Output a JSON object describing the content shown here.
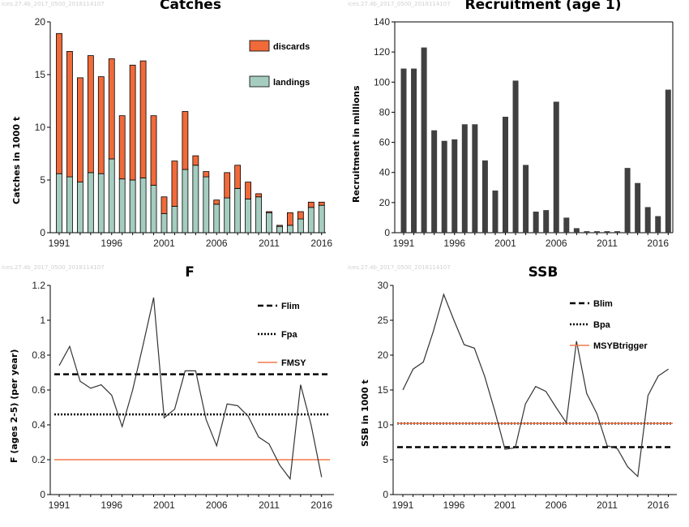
{
  "watermark": "ices.27.4b_2017_0500_2018114107",
  "chart_data": [
    {
      "id": "catches",
      "type": "bar",
      "stacked": true,
      "title": "Catches",
      "xlabel": "",
      "ylabel": "Catches in 1000 t",
      "ylim": [
        0,
        20
      ],
      "yticks": [
        0,
        5,
        10,
        15,
        20
      ],
      "xticks": [
        1991,
        1996,
        2001,
        2006,
        2011,
        2016
      ],
      "x": [
        1991,
        1992,
        1993,
        1994,
        1995,
        1996,
        1997,
        1998,
        1999,
        2000,
        2001,
        2002,
        2003,
        2004,
        2005,
        2006,
        2007,
        2008,
        2009,
        2010,
        2011,
        2012,
        2013,
        2014,
        2015,
        2016
      ],
      "series": [
        {
          "name": "landings",
          "color": "#a5cdbf",
          "values": [
            5.6,
            5.3,
            4.8,
            5.7,
            5.6,
            7.0,
            5.1,
            5.0,
            5.2,
            4.5,
            1.8,
            2.5,
            6.0,
            6.4,
            5.3,
            2.7,
            3.3,
            4.2,
            3.2,
            3.4,
            1.9,
            0.6,
            0.7,
            1.3,
            2.4,
            2.6
          ]
        },
        {
          "name": "discards",
          "color": "#f06a3a",
          "values": [
            13.3,
            11.9,
            9.9,
            11.1,
            9.2,
            9.5,
            6.0,
            10.9,
            11.1,
            6.6,
            1.6,
            4.3,
            5.5,
            0.9,
            0.5,
            0.4,
            2.4,
            2.2,
            1.6,
            0.3,
            0.1,
            0.1,
            1.2,
            0.7,
            0.5,
            0.3
          ]
        }
      ],
      "legend": [
        "discards",
        "landings"
      ],
      "legend_position": "top-right"
    },
    {
      "id": "recruitment",
      "type": "bar",
      "title": "Recruitment (age 1)",
      "xlabel": "",
      "ylabel": "Recruitment in millions",
      "ylim": [
        0,
        140
      ],
      "yticks": [
        0,
        20,
        40,
        60,
        80,
        100,
        120,
        140
      ],
      "xticks": [
        1991,
        1996,
        2001,
        2006,
        2011,
        2016
      ],
      "x": [
        1991,
        1992,
        1993,
        1994,
        1995,
        1996,
        1997,
        1998,
        1999,
        2000,
        2001,
        2002,
        2003,
        2004,
        2005,
        2006,
        2007,
        2008,
        2009,
        2010,
        2011,
        2012,
        2013,
        2014,
        2015,
        2016,
        2017
      ],
      "series": [
        {
          "color": "#404040",
          "values": [
            109,
            109,
            123,
            68,
            61,
            62,
            72,
            72,
            48,
            28,
            77,
            101,
            45,
            14,
            15,
            87,
            10,
            3,
            1,
            1,
            1,
            1,
            43,
            33,
            17,
            11,
            95
          ]
        }
      ]
    },
    {
      "id": "F",
      "type": "line",
      "title": "F",
      "xlabel": "",
      "ylabel": "F (ages 2-5) (per year)",
      "ylim": [
        0,
        1.2
      ],
      "yticks": [
        0,
        0.2,
        0.4,
        0.6,
        0.8,
        1,
        1.2
      ],
      "xticks": [
        1991,
        1996,
        2001,
        2006,
        2011,
        2016
      ],
      "x": [
        1991,
        1992,
        1993,
        1994,
        1995,
        1996,
        1997,
        1998,
        1999,
        2000,
        2001,
        2002,
        2003,
        2004,
        2005,
        2006,
        2007,
        2008,
        2009,
        2010,
        2011,
        2012,
        2013,
        2014,
        2015,
        2016
      ],
      "series": [
        {
          "color": "#333333",
          "values": [
            0.74,
            0.85,
            0.65,
            0.61,
            0.63,
            0.57,
            0.39,
            0.6,
            0.86,
            1.13,
            0.44,
            0.49,
            0.71,
            0.71,
            0.43,
            0.28,
            0.52,
            0.51,
            0.45,
            0.33,
            0.29,
            0.17,
            0.09,
            0.63,
            0.4,
            0.1
          ]
        }
      ],
      "reference_lines": [
        {
          "name": "Flim",
          "value": 0.69,
          "style": "dashed",
          "color": "#000000"
        },
        {
          "name": "Fpa",
          "value": 0.46,
          "style": "dotted",
          "color": "#000000"
        },
        {
          "name": "FMSY",
          "value": 0.2,
          "style": "solid",
          "color": "#f07a4a"
        }
      ],
      "legend_position": "top-right"
    },
    {
      "id": "SSB",
      "type": "line",
      "title": "SSB",
      "xlabel": "",
      "ylabel": "SSB in 1000 t",
      "ylim": [
        0,
        30
      ],
      "yticks": [
        0,
        5,
        10,
        15,
        20,
        25,
        30
      ],
      "xticks": [
        1991,
        1996,
        2001,
        2006,
        2011,
        2016
      ],
      "x": [
        1991,
        1992,
        1993,
        1994,
        1995,
        1996,
        1997,
        1998,
        1999,
        2000,
        2001,
        2002,
        2003,
        2004,
        2005,
        2006,
        2007,
        2008,
        2009,
        2010,
        2011,
        2012,
        2013,
        2014,
        2015,
        2016,
        2017
      ],
      "series": [
        {
          "color": "#333333",
          "values": [
            15.0,
            18.0,
            19.0,
            23.5,
            28.7,
            25.0,
            21.5,
            21.0,
            17.0,
            12.0,
            6.5,
            6.7,
            13.0,
            15.5,
            14.8,
            12.5,
            10.3,
            22.0,
            14.5,
            11.6,
            7.0,
            6.6,
            4.0,
            2.6,
            14.2,
            17.0,
            18.0
          ]
        }
      ],
      "reference_lines": [
        {
          "name": "Blim",
          "value": 6.8,
          "style": "dashed",
          "color": "#000000"
        },
        {
          "name": "Bpa",
          "value": 10.2,
          "style": "dotted",
          "color": "#000000"
        },
        {
          "name": "MSYBtrigger",
          "value": 10.2,
          "style": "solid",
          "color": "#f07a4a"
        }
      ],
      "legend_position": "top-right"
    }
  ]
}
